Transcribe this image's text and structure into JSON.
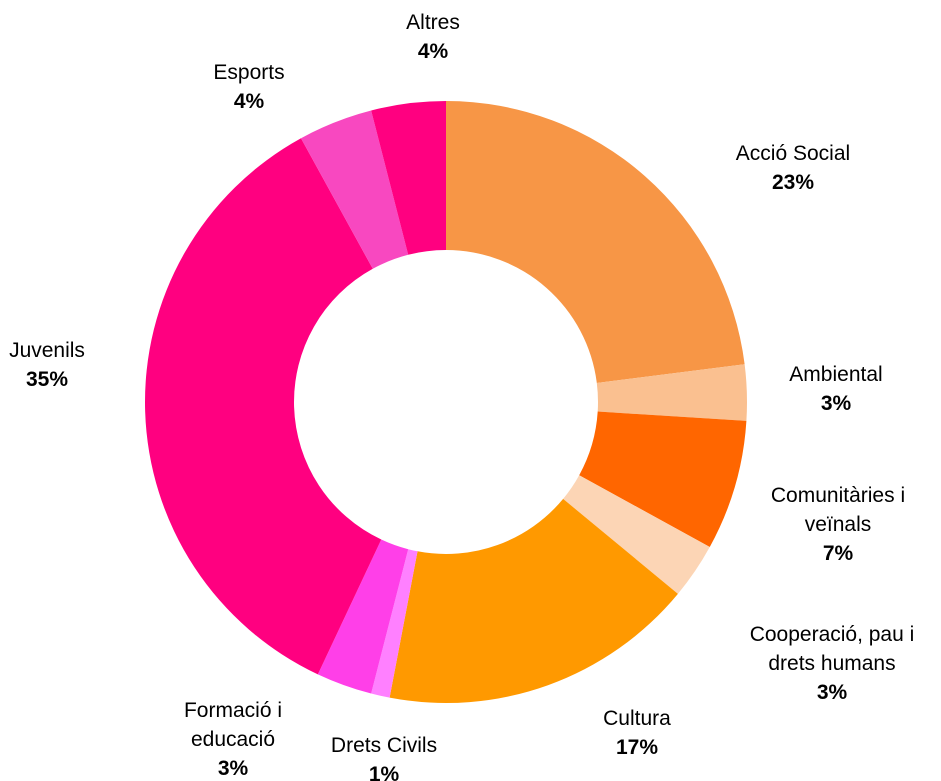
{
  "chart_data": {
    "type": "pie",
    "subtype": "donut",
    "title": "",
    "legend": "none",
    "slices": [
      {
        "category": "Acció Social",
        "value": 23,
        "value_label": "23%",
        "color": "#F79646"
      },
      {
        "category": "Ambiental",
        "value": 3,
        "value_label": "3%",
        "color": "#FAC090"
      },
      {
        "category": "Comunitàries i veïnals",
        "value": 7,
        "value_label": "7%",
        "color": "#FF6600"
      },
      {
        "category": "Cooperació, pau i drets humans",
        "value": 3,
        "value_label": "3%",
        "color": "#FCD5B5"
      },
      {
        "category": "Cultura",
        "value": 17,
        "value_label": "17%",
        "color": "#FF9900"
      },
      {
        "category": "Drets Civils",
        "value": 1,
        "value_label": "1%",
        "color": "#FF80FF"
      },
      {
        "category": "Formació i educació",
        "value": 3,
        "value_label": "3%",
        "color": "#FF3FE8"
      },
      {
        "category": "Juvenils",
        "value": 35,
        "value_label": "35%",
        "color": "#FF0080"
      },
      {
        "category": "Esports",
        "value": 4,
        "value_label": "4%",
        "color": "#F848C0"
      },
      {
        "category": "Altres",
        "value": 4,
        "value_label": "4%",
        "color": "#FF0080"
      }
    ]
  }
}
